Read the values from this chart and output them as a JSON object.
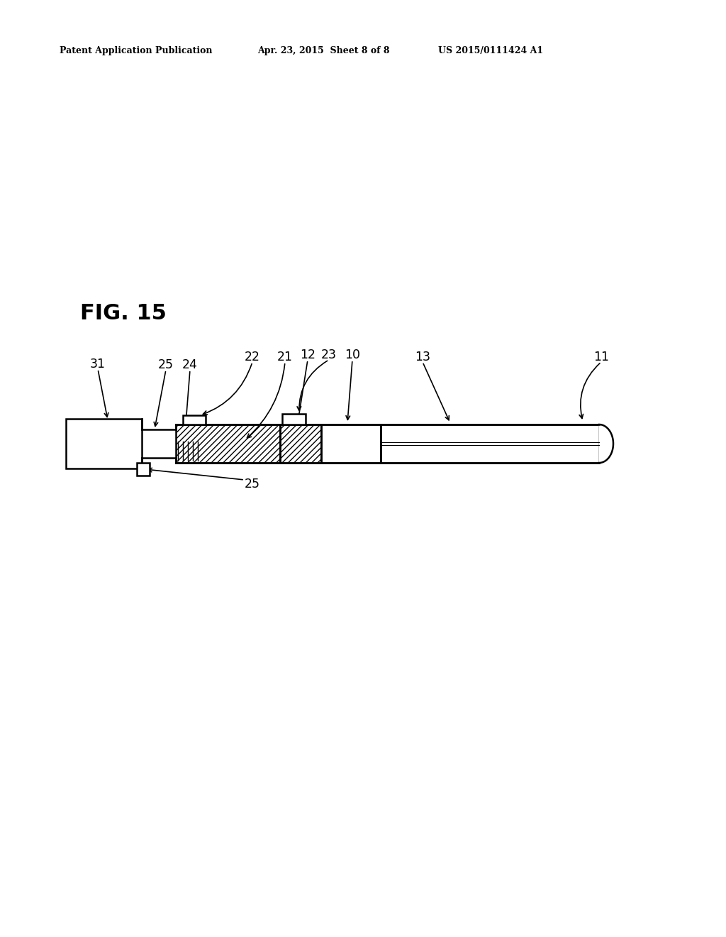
{
  "bg_color": "#ffffff",
  "header_left": "Patent Application Publication",
  "header_center": "Apr. 23, 2015  Sheet 8 of 8",
  "header_right": "US 2015/0111424 A1",
  "fig_label": "FIG. 15",
  "line_color": "#000000"
}
